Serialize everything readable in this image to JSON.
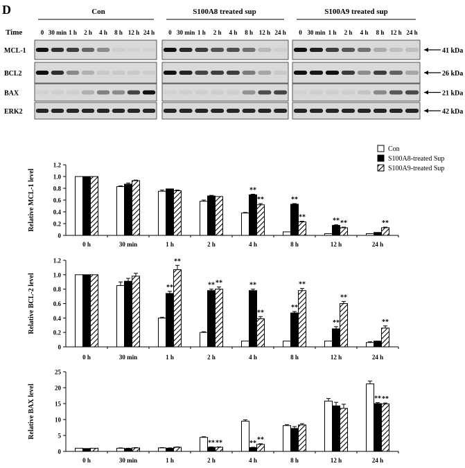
{
  "panel_label": "D",
  "blot": {
    "time_label": "Time",
    "groups": [
      "Con",
      "S100A8 treated sup",
      "S100A9 treated sup"
    ],
    "timepoints": [
      "0",
      "30 min",
      "1 h",
      "2 h",
      "4 h",
      "8 h",
      "12 h",
      "24 h"
    ],
    "proteins": [
      {
        "name": "MCL-1",
        "kda": "41 kDa",
        "levels": [
          [
            1.0,
            0.85,
            0.78,
            0.58,
            0.38,
            0.05,
            0.03,
            0.03
          ],
          [
            1.0,
            0.88,
            0.8,
            0.68,
            0.69,
            0.53,
            0.17,
            0.05
          ],
          [
            1.0,
            0.93,
            0.77,
            0.66,
            0.52,
            0.23,
            0.13,
            0.13
          ]
        ]
      },
      {
        "name": "BCL2",
        "kda": "26 kDa",
        "levels": [
          [
            1.0,
            0.85,
            0.4,
            0.2,
            0.08,
            0.08,
            0.08,
            0.06
          ],
          [
            1.0,
            0.91,
            0.74,
            0.78,
            0.78,
            0.47,
            0.25,
            0.08
          ],
          [
            1.0,
            0.98,
            1.07,
            0.8,
            0.39,
            0.78,
            0.6,
            0.26
          ]
        ]
      },
      {
        "name": "BAX",
        "kda": "21 kDa",
        "levels": [
          [
            0.04,
            0.05,
            0.05,
            0.2,
            0.44,
            0.38,
            0.75,
            1.0
          ],
          [
            0.04,
            0.05,
            0.05,
            0.06,
            0.06,
            0.35,
            0.7,
            0.75
          ],
          [
            0.04,
            0.05,
            0.05,
            0.06,
            0.1,
            0.4,
            0.65,
            0.72
          ]
        ]
      },
      {
        "name": "ERK2",
        "kda": "42 kDa",
        "levels": [
          [
            0.9,
            0.9,
            0.9,
            0.9,
            0.9,
            0.9,
            0.9,
            0.9
          ],
          [
            0.9,
            0.9,
            0.9,
            0.9,
            0.9,
            0.9,
            0.9,
            0.9
          ],
          [
            0.9,
            0.9,
            0.9,
            0.9,
            0.9,
            0.9,
            0.9,
            0.9
          ]
        ]
      }
    ]
  },
  "legend": {
    "entries": [
      "Con",
      "S100A8-treated Sup",
      "S100A9-treated Sup"
    ]
  },
  "chart_data": [
    {
      "type": "bar",
      "title": "",
      "ylabel": "Relative MCL-1  level",
      "xlabel": "",
      "ylim": [
        0,
        1.2
      ],
      "yticks": [
        "0",
        "0.2",
        "0.4",
        "0.6",
        "0.8",
        "1.0",
        "1.2"
      ],
      "categories": [
        "0 h",
        "30 min",
        "1 h",
        "2 h",
        "4 h",
        "8 h",
        "12 h",
        "24 h"
      ],
      "series": [
        {
          "name": "Con",
          "values": [
            1.0,
            0.83,
            0.75,
            0.58,
            0.38,
            0.06,
            0.03,
            0.03
          ],
          "errors": [
            0,
            0.01,
            0.02,
            0.02,
            0.01,
            0,
            0,
            0
          ]
        },
        {
          "name": "S100A8-treated Sup",
          "values": [
            1.0,
            0.87,
            0.79,
            0.67,
            0.69,
            0.53,
            0.17,
            0.05
          ],
          "errors": [
            0,
            0.02,
            0,
            0.01,
            0.01,
            0.01,
            0.01,
            0
          ]
        },
        {
          "name": "S100A9-treated Sup",
          "values": [
            1.0,
            0.93,
            0.76,
            0.66,
            0.52,
            0.23,
            0.13,
            0.13
          ],
          "errors": [
            0,
            0.01,
            0.01,
            0,
            0.02,
            0.01,
            0.01,
            0.01
          ]
        }
      ],
      "annotations": [
        {
          "category": "4 h",
          "series": 1,
          "text": "**"
        },
        {
          "category": "4 h",
          "series": 2,
          "text": "**"
        },
        {
          "category": "8 h",
          "series": 1,
          "text": "**"
        },
        {
          "category": "8 h",
          "series": 2,
          "text": "**"
        },
        {
          "category": "12 h",
          "series": 1,
          "text": "**"
        },
        {
          "category": "12 h",
          "series": 2,
          "text": "**"
        },
        {
          "category": "24 h",
          "series": 2,
          "text": "**"
        }
      ]
    },
    {
      "type": "bar",
      "title": "",
      "ylabel": "Relative BCL-2  level",
      "xlabel": "",
      "ylim": [
        0,
        1.2
      ],
      "yticks": [
        "0",
        "0.2",
        "0.4",
        "0.6",
        "0.8",
        "1.0",
        "1.2"
      ],
      "categories": [
        "0 h",
        "30 min",
        "1 h",
        "2 h",
        "4 h",
        "8 h",
        "12 h",
        "24 h"
      ],
      "series": [
        {
          "name": "Con",
          "values": [
            1.0,
            0.85,
            0.4,
            0.2,
            0.08,
            0.08,
            0.08,
            0.06
          ],
          "errors": [
            0,
            0.05,
            0.01,
            0.01,
            0,
            0,
            0,
            0.01
          ]
        },
        {
          "name": "S100A8-treated Sup",
          "values": [
            1.0,
            0.91,
            0.74,
            0.78,
            0.78,
            0.47,
            0.25,
            0.08
          ],
          "errors": [
            0,
            0.04,
            0.03,
            0.02,
            0.02,
            0.02,
            0.03,
            0
          ]
        },
        {
          "name": "S100A9-treated Sup",
          "values": [
            1.0,
            0.98,
            1.07,
            0.8,
            0.39,
            0.78,
            0.6,
            0.26
          ],
          "errors": [
            0,
            0.04,
            0.06,
            0.03,
            0.03,
            0.03,
            0.03,
            0.03
          ]
        }
      ],
      "annotations": [
        {
          "category": "1 h",
          "series": 1,
          "text": "**"
        },
        {
          "category": "1 h",
          "series": 2,
          "text": "**"
        },
        {
          "category": "2 h",
          "series": 1,
          "text": "**"
        },
        {
          "category": "2 h",
          "series": 2,
          "text": "**"
        },
        {
          "category": "4 h",
          "series": 1,
          "text": "**"
        },
        {
          "category": "4 h",
          "series": 2,
          "text": "**"
        },
        {
          "category": "8 h",
          "series": 1,
          "text": "**"
        },
        {
          "category": "8 h",
          "series": 2,
          "text": "**"
        },
        {
          "category": "12 h",
          "series": 1,
          "text": "**"
        },
        {
          "category": "12 h",
          "series": 2,
          "text": "**"
        },
        {
          "category": "24 h",
          "series": 2,
          "text": "**"
        }
      ]
    },
    {
      "type": "bar",
      "title": "",
      "ylabel": "Relative BAX  level",
      "xlabel": "",
      "ylim": [
        0,
        25
      ],
      "yticks": [
        "0",
        "5",
        "10",
        "15",
        "20",
        "25"
      ],
      "categories": [
        "0 h",
        "30 min",
        "1 h",
        "2 h",
        "4 h",
        "8 h",
        "12 h",
        "24 h"
      ],
      "series": [
        {
          "name": "Con",
          "values": [
            1.0,
            1.0,
            1.1,
            4.4,
            9.5,
            8.1,
            15.8,
            21.2
          ],
          "errors": [
            0,
            0.1,
            0.1,
            0.2,
            0.4,
            0.3,
            0.8,
            0.9
          ]
        },
        {
          "name": "S100A8-treated Sup",
          "values": [
            0.9,
            0.9,
            1.0,
            1.3,
            1.2,
            7.2,
            14.3,
            15.0
          ],
          "errors": [
            0,
            0.1,
            0.1,
            0.1,
            0.1,
            0.6,
            1.1,
            0.3
          ]
        },
        {
          "name": "S100A9-treated Sup",
          "values": [
            1.0,
            1.1,
            1.3,
            1.3,
            2.2,
            8.3,
            13.5,
            14.9
          ],
          "errors": [
            0,
            0.1,
            0.1,
            0.1,
            0.2,
            0.4,
            1.3,
            0.3
          ]
        }
      ],
      "annotations": [
        {
          "category": "2 h",
          "series": 1,
          "text": "**"
        },
        {
          "category": "2 h",
          "series": 2,
          "text": "**"
        },
        {
          "category": "4 h",
          "series": 1,
          "text": "**"
        },
        {
          "category": "4 h",
          "series": 2,
          "text": "**"
        },
        {
          "category": "24 h",
          "series": 1,
          "text": "**"
        },
        {
          "category": "24 h",
          "series": 2,
          "text": "**"
        }
      ]
    }
  ]
}
